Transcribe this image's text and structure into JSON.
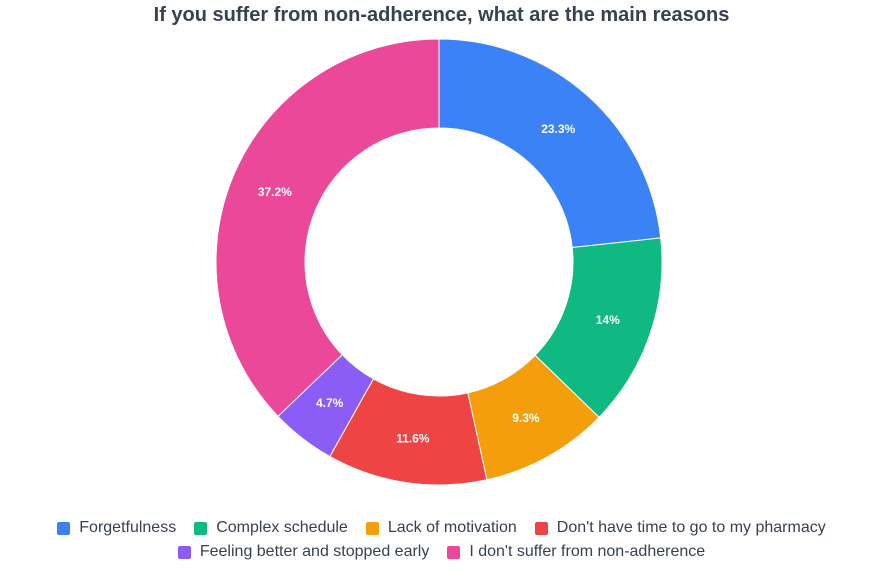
{
  "chart_data": {
    "type": "pie",
    "variant": "donut",
    "title": "If you suffer from non-adherence, what are the main reasons",
    "legend_position": "bottom",
    "slices": [
      {
        "label": "Forgetfulness",
        "value": 23.3,
        "display": "23.3%",
        "color": "#3B82F6"
      },
      {
        "label": "Complex schedule",
        "value": 14,
        "display": "14%",
        "color": "#10B981"
      },
      {
        "label": "Lack of motivation",
        "value": 9.3,
        "display": "9.3%",
        "color": "#F59E0B"
      },
      {
        "label": "Don't have time to go to my pharmacy",
        "value": 11.6,
        "display": "11.6%",
        "color": "#EF4444"
      },
      {
        "label": "Feeling better and stopped early",
        "value": 4.7,
        "display": "4.7%",
        "color": "#8B5CF6"
      },
      {
        "label": "I don't suffer from non-adherence",
        "value": 37.2,
        "display": "37.2%",
        "color": "#EC4899"
      }
    ],
    "legend_rows": [
      [
        0,
        1,
        2,
        3
      ],
      [
        4,
        5
      ]
    ]
  }
}
